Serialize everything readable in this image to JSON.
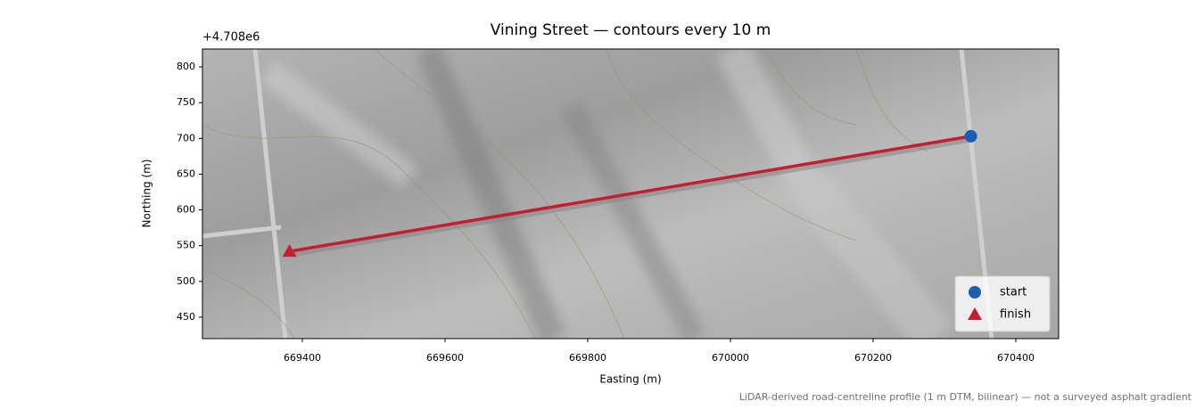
{
  "chart_data": {
    "type": "map",
    "title": "Vining Street — contours every 10 m",
    "xlabel": "Easting (m)",
    "ylabel": "Northing (m)",
    "y_offset_label": "+4.708e6",
    "note": "LiDAR-derived road-centreline profile (1 m DTM, bilinear) — not a surveyed asphalt gradient",
    "xlim": [
      669260,
      670460
    ],
    "ylim": [
      420,
      825
    ],
    "xticks": [
      669400,
      669600,
      669800,
      670000,
      670200,
      670400
    ],
    "yticks": [
      450,
      500,
      550,
      600,
      650,
      700,
      750,
      800
    ],
    "route": {
      "x": [
        670337,
        669382
      ],
      "y": [
        703,
        542
      ],
      "color": "#c41f30"
    },
    "points": [
      {
        "name": "start",
        "x": 670337,
        "y": 703,
        "color": "#1a5cb4",
        "marker": "circle"
      },
      {
        "name": "finish",
        "x": 669382,
        "y": 542,
        "color": "#c41f30",
        "marker": "triangle"
      }
    ],
    "legend": "lower right"
  }
}
